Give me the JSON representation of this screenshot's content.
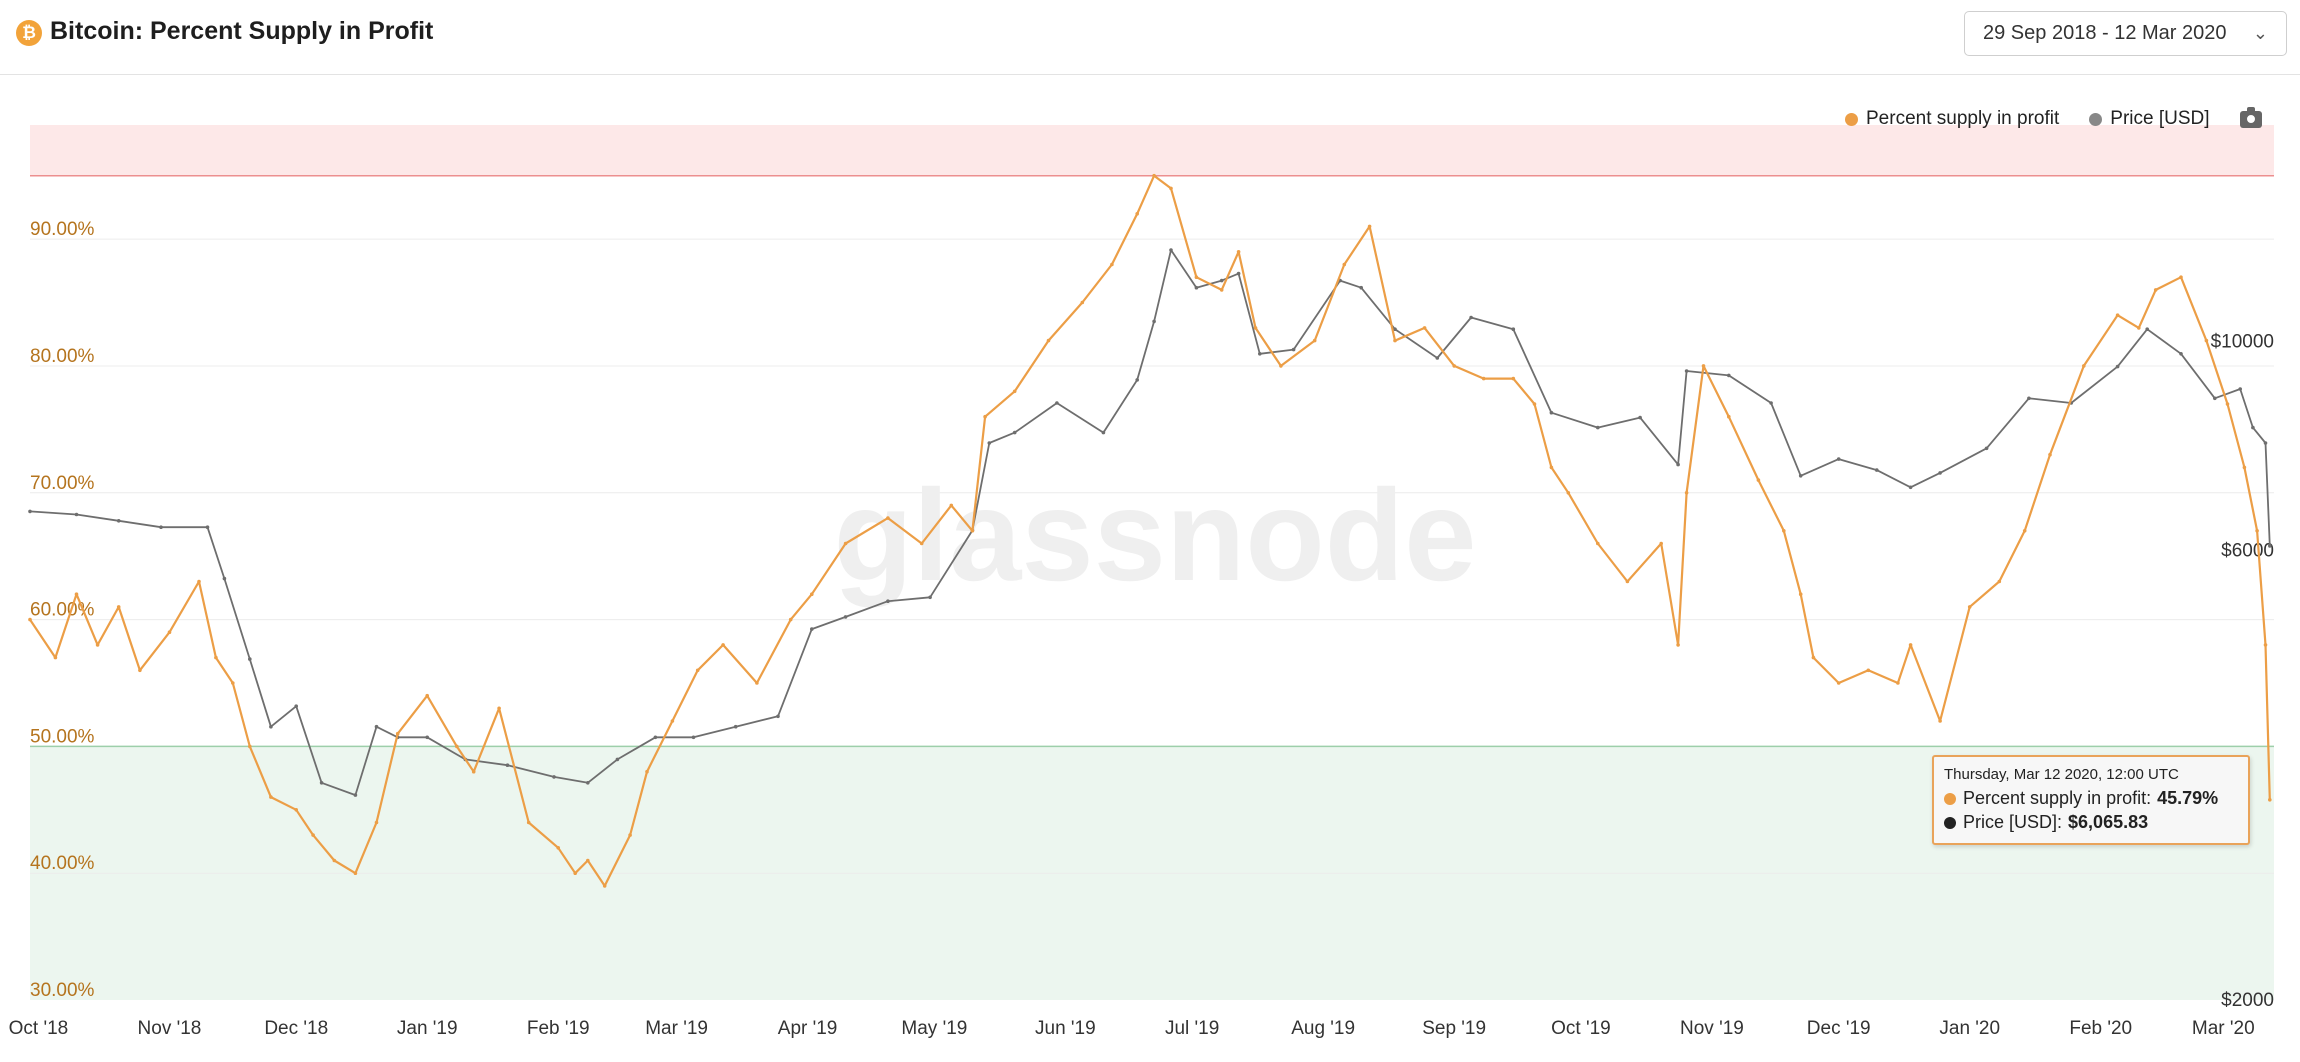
{
  "header": {
    "title": "Bitcoin: Percent Supply in Profit",
    "logo_symbol": "₿",
    "date_range": "29 Sep 2018 - 12 Mar 2020"
  },
  "colors": {
    "supply": "#ec9e46",
    "price": "#6e6e6e",
    "upper_band": "#fde8e8",
    "upper_line": "#ec8f8f",
    "lower_band": "#ecf6ef",
    "lower_line": "#9dcfaa",
    "y_left_labels": "#b5741e",
    "watermark": "#efefef"
  },
  "watermark": "glassnode",
  "legend": {
    "items": [
      {
        "label": "Percent supply in profit",
        "color": "#ec9e46"
      },
      {
        "label": "Price [USD]",
        "color": "#888888"
      }
    ],
    "icon": "camera-icon"
  },
  "tooltip": {
    "date": "Thursday, Mar 12 2020, 12:00 UTC",
    "supply_label": "Percent supply in profit:",
    "supply_value": "45.79%",
    "price_label": "Price [USD]:",
    "price_value": "$6,065.83"
  },
  "chart_data": {
    "type": "line",
    "x_tick_labels": [
      "Oct '18",
      "Nov '18",
      "Dec '18",
      "Jan '19",
      "Feb '19",
      "Mar '19",
      "Apr '19",
      "May '19",
      "Jun '19",
      "Jul '19",
      "Aug '19",
      "Sep '19",
      "Oct '19",
      "Nov '19",
      "Dec '19",
      "Jan '20",
      "Feb '20",
      "Mar '20"
    ],
    "y_left_ticks": [
      "30.00%",
      "40.00%",
      "50.00%",
      "60.00%",
      "70.00%",
      "80.00%",
      "90.00%"
    ],
    "y_left_range": [
      30,
      99
    ],
    "y_right_ticks": [
      "$2000",
      "$6000",
      "$10000"
    ],
    "y_right_scale": "log",
    "bands": {
      "upper_threshold": 95,
      "lower_threshold": 50
    },
    "series": [
      {
        "name": "Percent supply in profit",
        "axis": "left",
        "x": [
          "2018-09-29",
          "2018-10-05",
          "2018-10-10",
          "2018-10-15",
          "2018-10-20",
          "2018-10-25",
          "2018-11-01",
          "2018-11-08",
          "2018-11-12",
          "2018-11-16",
          "2018-11-20",
          "2018-11-25",
          "2018-12-01",
          "2018-12-05",
          "2018-12-10",
          "2018-12-15",
          "2018-12-20",
          "2018-12-25",
          "2019-01-01",
          "2019-01-08",
          "2019-01-12",
          "2019-01-18",
          "2019-01-25",
          "2019-02-01",
          "2019-02-05",
          "2019-02-08",
          "2019-02-12",
          "2019-02-18",
          "2019-02-22",
          "2019-02-28",
          "2019-03-06",
          "2019-03-12",
          "2019-03-20",
          "2019-03-28",
          "2019-04-02",
          "2019-04-10",
          "2019-04-20",
          "2019-04-28",
          "2019-05-05",
          "2019-05-10",
          "2019-05-13",
          "2019-05-20",
          "2019-05-28",
          "2019-06-05",
          "2019-06-12",
          "2019-06-18",
          "2019-06-22",
          "2019-06-26",
          "2019-07-02",
          "2019-07-08",
          "2019-07-12",
          "2019-07-16",
          "2019-07-22",
          "2019-07-30",
          "2019-08-06",
          "2019-08-12",
          "2019-08-18",
          "2019-08-25",
          "2019-09-01",
          "2019-09-08",
          "2019-09-15",
          "2019-09-20",
          "2019-09-24",
          "2019-09-28",
          "2019-10-05",
          "2019-10-12",
          "2019-10-20",
          "2019-10-24",
          "2019-10-26",
          "2019-10-30",
          "2019-11-05",
          "2019-11-12",
          "2019-11-18",
          "2019-11-22",
          "2019-11-25",
          "2019-12-01",
          "2019-12-08",
          "2019-12-15",
          "2019-12-18",
          "2019-12-25",
          "2020-01-01",
          "2020-01-08",
          "2020-01-14",
          "2020-01-20",
          "2020-01-28",
          "2020-02-05",
          "2020-02-10",
          "2020-02-14",
          "2020-02-20",
          "2020-02-26",
          "2020-03-02",
          "2020-03-06",
          "2020-03-09",
          "2020-03-11",
          "2020-03-12"
        ],
        "values": [
          60,
          57,
          62,
          58,
          61,
          56,
          59,
          63,
          57,
          55,
          50,
          46,
          45,
          43,
          41,
          40,
          44,
          51,
          54,
          50,
          48,
          53,
          44,
          42,
          40,
          41,
          39,
          43,
          48,
          52,
          56,
          58,
          55,
          60,
          62,
          66,
          68,
          66,
          69,
          67,
          76,
          78,
          82,
          85,
          88,
          92,
          95,
          94,
          87,
          86,
          89,
          83,
          80,
          82,
          88,
          91,
          82,
          83,
          80,
          79,
          79,
          77,
          72,
          70,
          66,
          63,
          66,
          58,
          70,
          80,
          76,
          71,
          67,
          62,
          57,
          55,
          56,
          55,
          58,
          52,
          61,
          63,
          67,
          73,
          80,
          84,
          83,
          86,
          87,
          82,
          77,
          72,
          67,
          58,
          45.79
        ]
      },
      {
        "name": "Price [USD]",
        "axis": "right",
        "x": [
          "2018-09-29",
          "2018-10-10",
          "2018-10-20",
          "2018-10-30",
          "2018-11-10",
          "2018-11-14",
          "2018-11-20",
          "2018-11-25",
          "2018-12-01",
          "2018-12-07",
          "2018-12-15",
          "2018-12-20",
          "2018-12-25",
          "2019-01-01",
          "2019-01-10",
          "2019-01-20",
          "2019-01-31",
          "2019-02-08",
          "2019-02-15",
          "2019-02-24",
          "2019-03-05",
          "2019-03-15",
          "2019-03-25",
          "2019-04-02",
          "2019-04-10",
          "2019-04-20",
          "2019-04-30",
          "2019-05-10",
          "2019-05-14",
          "2019-05-20",
          "2019-05-30",
          "2019-06-10",
          "2019-06-18",
          "2019-06-22",
          "2019-06-26",
          "2019-07-02",
          "2019-07-08",
          "2019-07-12",
          "2019-07-17",
          "2019-07-25",
          "2019-08-05",
          "2019-08-10",
          "2019-08-18",
          "2019-08-28",
          "2019-09-05",
          "2019-09-15",
          "2019-09-24",
          "2019-10-05",
          "2019-10-15",
          "2019-10-24",
          "2019-10-26",
          "2019-11-05",
          "2019-11-15",
          "2019-11-22",
          "2019-12-01",
          "2019-12-10",
          "2019-12-18",
          "2019-12-25",
          "2020-01-05",
          "2020-01-15",
          "2020-01-25",
          "2020-02-05",
          "2020-02-12",
          "2020-02-20",
          "2020-02-28",
          "2020-03-05",
          "2020-03-08",
          "2020-03-11",
          "2020-03-12"
        ],
        "values": [
          6600,
          6550,
          6450,
          6350,
          6350,
          5600,
          4600,
          3900,
          4100,
          3400,
          3300,
          3900,
          3800,
          3800,
          3600,
          3550,
          3450,
          3400,
          3600,
          3800,
          3800,
          3900,
          4000,
          4950,
          5100,
          5300,
          5350,
          6300,
          7800,
          8000,
          8600,
          8000,
          9100,
          10500,
          12500,
          11400,
          11600,
          11800,
          9700,
          9800,
          11600,
          11400,
          10300,
          9600,
          10600,
          10300,
          8400,
          8100,
          8300,
          7400,
          9300,
          9200,
          8600,
          7200,
          7500,
          7300,
          7000,
          7250,
          7700,
          8700,
          8600,
          9400,
          10300,
          9700,
          8700,
          8900,
          8100,
          7800,
          6065.83
        ]
      }
    ]
  }
}
